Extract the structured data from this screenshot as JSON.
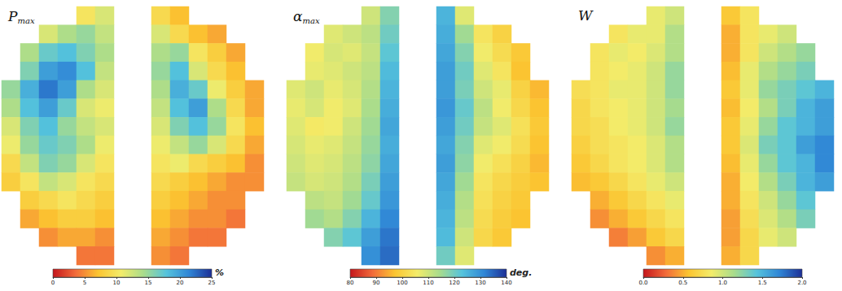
{
  "chart_data": [
    {
      "type": "heatmap",
      "title": {
        "text": "P",
        "subscript": "max"
      },
      "colorbar": {
        "range": [
          0,
          25
        ],
        "ticks": [
          0,
          5,
          10,
          15,
          20,
          25
        ],
        "unit": "%"
      },
      "cells": [
        [
          null,
          null,
          null,
          null,
          10,
          12,
          null,
          null,
          9,
          7,
          null,
          null,
          null,
          null
        ],
        [
          null,
          null,
          12,
          14,
          15,
          13,
          null,
          null,
          12,
          9,
          7,
          6,
          null,
          null
        ],
        [
          null,
          14,
          17,
          18,
          16,
          14,
          null,
          null,
          14,
          15,
          10,
          8,
          6,
          null
        ],
        [
          null,
          16,
          20,
          21,
          18,
          13,
          null,
          null,
          15,
          18,
          12,
          9,
          7,
          null
        ],
        [
          15,
          19,
          22,
          20,
          14,
          12,
          null,
          null,
          14,
          19,
          17,
          11,
          8,
          6
        ],
        [
          14,
          18,
          20,
          17,
          12,
          11,
          null,
          null,
          13,
          18,
          20,
          14,
          9,
          6
        ],
        [
          12,
          16,
          18,
          15,
          13,
          12,
          null,
          null,
          12,
          16,
          18,
          15,
          10,
          7
        ],
        [
          11,
          15,
          17,
          16,
          14,
          11,
          null,
          null,
          11,
          13,
          15,
          12,
          9,
          6
        ],
        [
          9,
          13,
          16,
          15,
          12,
          10,
          null,
          null,
          10,
          11,
          9,
          8,
          7,
          5
        ],
        [
          8,
          10,
          13,
          12,
          10,
          9,
          null,
          null,
          9,
          8,
          7,
          6,
          5,
          5
        ],
        [
          null,
          8,
          9,
          10,
          9,
          8,
          null,
          null,
          8,
          7,
          6,
          5,
          5,
          null
        ],
        [
          null,
          6,
          7,
          8,
          8,
          7,
          null,
          null,
          7,
          6,
          5,
          5,
          4,
          null
        ],
        [
          null,
          null,
          5,
          6,
          6,
          5,
          null,
          null,
          6,
          5,
          4,
          4,
          null,
          null
        ],
        [
          null,
          null,
          null,
          null,
          4,
          4,
          null,
          null,
          5,
          4,
          null,
          null,
          null,
          null
        ]
      ]
    },
    {
      "type": "heatmap",
      "title": {
        "text": "α",
        "subscript": "max"
      },
      "colorbar": {
        "range": [
          80,
          140
        ],
        "ticks": [
          80,
          90,
          100,
          110,
          120,
          130,
          140
        ],
        "unit": "deg."
      },
      "cells": [
        [
          null,
          null,
          null,
          null,
          110,
          118,
          null,
          null,
          125,
          108,
          null,
          null,
          null,
          null
        ],
        [
          null,
          null,
          108,
          110,
          112,
          120,
          null,
          null,
          126,
          115,
          104,
          100,
          null,
          null
        ],
        [
          null,
          106,
          109,
          108,
          111,
          122,
          null,
          null,
          127,
          118,
          106,
          102,
          98,
          null
        ],
        [
          null,
          107,
          108,
          110,
          112,
          124,
          null,
          null,
          128,
          120,
          108,
          104,
          97,
          null
        ],
        [
          108,
          110,
          107,
          109,
          113,
          125,
          null,
          null,
          128,
          119,
          110,
          107,
          100,
          96
        ],
        [
          107,
          109,
          106,
          108,
          114,
          126,
          null,
          null,
          129,
          121,
          112,
          106,
          101,
          97
        ],
        [
          108,
          105,
          106,
          110,
          115,
          127,
          null,
          null,
          128,
          120,
          111,
          108,
          103,
          98
        ],
        [
          109,
          107,
          108,
          111,
          116,
          126,
          null,
          null,
          127,
          118,
          108,
          106,
          102,
          97
        ],
        [
          110,
          108,
          109,
          112,
          117,
          127,
          null,
          null,
          128,
          117,
          106,
          103,
          100,
          96
        ],
        [
          111,
          109,
          110,
          113,
          119,
          128,
          null,
          null,
          127,
          115,
          104,
          101,
          99,
          97
        ],
        [
          null,
          112,
          111,
          115,
          121,
          129,
          null,
          null,
          126,
          113,
          103,
          100,
          98,
          null
        ],
        [
          null,
          115,
          113,
          118,
          125,
          131,
          null,
          null,
          125,
          112,
          102,
          99,
          97,
          null
        ],
        [
          null,
          null,
          118,
          122,
          128,
          133,
          null,
          null,
          124,
          110,
          101,
          98,
          null,
          null
        ],
        [
          null,
          null,
          null,
          null,
          130,
          134,
          null,
          null,
          120,
          108,
          null,
          null,
          null,
          null
        ]
      ]
    },
    {
      "type": "heatmap",
      "title": {
        "text": "W",
        "subscript": ""
      },
      "colorbar": {
        "range": [
          0,
          2
        ],
        "ticks": [
          {
            "value": 0,
            "label": "0.0"
          },
          0.5,
          {
            "value": 1,
            "label": "1.0"
          },
          1.5,
          {
            "value": 2,
            "label": "2.0"
          }
        ],
        "unit": ""
      },
      "cells": [
        [
          null,
          null,
          null,
          null,
          0.9,
          1.0,
          null,
          null,
          0.6,
          0.8,
          null,
          null,
          null,
          null
        ],
        [
          null,
          null,
          0.8,
          0.9,
          0.9,
          1.1,
          null,
          null,
          0.5,
          0.8,
          0.9,
          1.0,
          null,
          null
        ],
        [
          null,
          0.8,
          0.9,
          0.85,
          0.95,
          1.1,
          null,
          null,
          0.5,
          0.8,
          1.0,
          1.1,
          1.2,
          null
        ],
        [
          null,
          0.8,
          0.85,
          0.9,
          1.0,
          1.2,
          null,
          null,
          0.55,
          0.9,
          1.1,
          1.2,
          1.3,
          null
        ],
        [
          0.75,
          0.8,
          0.9,
          0.9,
          1.0,
          1.2,
          null,
          null,
          0.6,
          0.9,
          1.2,
          1.3,
          1.4,
          1.5
        ],
        [
          0.7,
          0.8,
          0.85,
          0.9,
          1.0,
          1.15,
          null,
          null,
          0.55,
          0.85,
          1.1,
          1.3,
          1.5,
          1.6
        ],
        [
          0.7,
          0.75,
          0.85,
          0.9,
          1.0,
          1.2,
          null,
          null,
          0.6,
          0.9,
          1.2,
          1.4,
          1.5,
          1.6
        ],
        [
          0.65,
          0.75,
          0.8,
          0.85,
          0.95,
          1.1,
          null,
          null,
          0.6,
          0.95,
          1.3,
          1.4,
          1.6,
          1.7
        ],
        [
          0.6,
          0.7,
          0.8,
          0.85,
          0.95,
          1.1,
          null,
          null,
          0.55,
          0.9,
          1.2,
          1.4,
          1.5,
          1.7
        ],
        [
          0.55,
          0.6,
          0.7,
          0.8,
          0.9,
          1.0,
          null,
          null,
          0.5,
          0.85,
          1.1,
          1.3,
          1.5,
          1.6
        ],
        [
          null,
          0.5,
          0.6,
          0.7,
          0.8,
          0.9,
          null,
          null,
          0.5,
          0.8,
          1.0,
          1.2,
          1.4,
          null
        ],
        [
          null,
          0.4,
          0.5,
          0.6,
          0.7,
          0.8,
          null,
          null,
          0.45,
          0.75,
          0.95,
          1.1,
          1.3,
          null
        ],
        [
          null,
          null,
          0.35,
          0.45,
          0.6,
          0.7,
          null,
          null,
          0.45,
          0.7,
          0.9,
          1.0,
          null,
          null
        ],
        [
          null,
          null,
          null,
          null,
          0.4,
          0.5,
          null,
          null,
          0.5,
          0.7,
          null,
          null,
          null,
          null
        ]
      ]
    }
  ]
}
